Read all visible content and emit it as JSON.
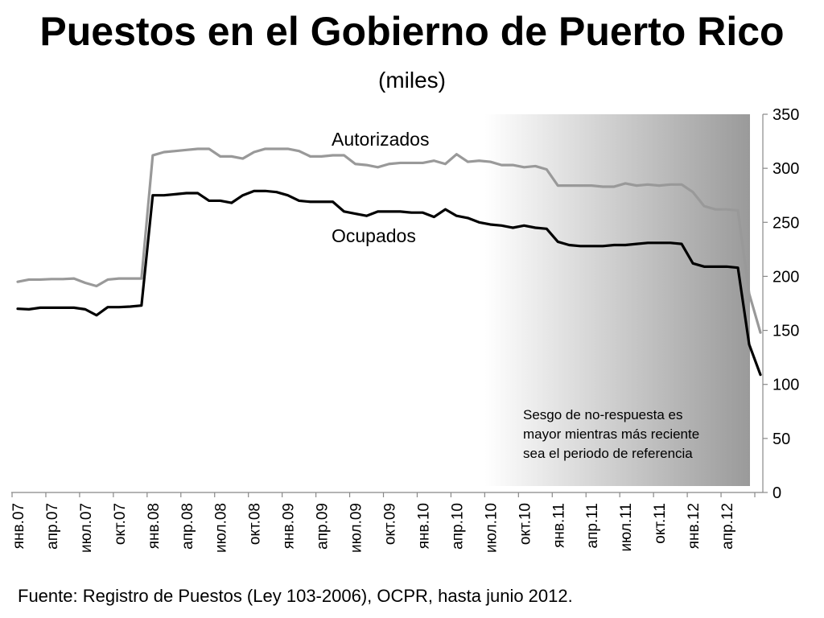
{
  "title": "Puestos en el Gobierno de Puerto Rico",
  "subtitle": "(miles)",
  "footer": "Fuente: Registro de Puestos (Ley 103-2006), OCPR, hasta junio 2012.",
  "note_lines": [
    "Sesgo de no-respuesta es",
    "mayor mientras más reciente",
    "sea el periodo de referencia"
  ],
  "colors": {
    "autorizados": "#999999",
    "ocupados": "#000000",
    "shade_dark": "#9a9a9a"
  },
  "chart_data": {
    "type": "line",
    "ylim": [
      0,
      350
    ],
    "yticks": [
      0,
      50,
      100,
      150,
      200,
      250,
      300,
      350
    ],
    "y_axis_position": "right",
    "grid": false,
    "x_tick_labels": [
      "янв.07",
      "апр.07",
      "июл.07",
      "окт.07",
      "янв.08",
      "апр.08",
      "июл.08",
      "окт.08",
      "янв.09",
      "апр.09",
      "июл.09",
      "окт.09",
      "янв.10",
      "апр.10",
      "июл.10",
      "окт.10",
      "янв.11",
      "апр.11",
      "июл.11",
      "окт.11",
      "янв.12",
      "апр.12"
    ],
    "x_start": "2007-01",
    "x_end": "2012-06",
    "shaded_region": {
      "from": "2010-07",
      "to": "2012-06",
      "style": "gradient white to gray"
    },
    "series": [
      {
        "name": "Autorizados",
        "color": "#999999",
        "values": [
          195,
          197,
          197,
          197.5,
          197.5,
          198,
          194,
          191,
          197,
          198,
          198,
          198,
          312,
          315,
          316,
          317,
          318,
          318,
          311,
          311,
          309,
          315,
          318,
          318,
          318,
          316,
          311,
          311,
          312,
          312,
          304,
          303,
          301,
          304,
          305,
          305,
          305,
          307,
          304,
          313,
          306,
          307,
          306,
          303,
          303,
          301,
          302,
          299,
          284,
          284,
          284,
          284,
          283,
          283,
          286,
          284,
          285,
          284,
          285,
          285,
          278,
          265,
          262,
          262,
          261,
          184,
          148
        ]
      },
      {
        "name": "Ocupados",
        "color": "#000000",
        "values": [
          170,
          169.5,
          171,
          171,
          171,
          171,
          169.5,
          164,
          171.5,
          171.5,
          172,
          173,
          275,
          275,
          276,
          277,
          277,
          270,
          270,
          268,
          275,
          279,
          279,
          278,
          275,
          270,
          269,
          269,
          269,
          260,
          258,
          256,
          260,
          260,
          260,
          259,
          259,
          255,
          262,
          256,
          254,
          250,
          248,
          247,
          245,
          247,
          245,
          244,
          232,
          229,
          228,
          228,
          228,
          229,
          229,
          230,
          231,
          231,
          231,
          230,
          212,
          209,
          209,
          209,
          208,
          137,
          109
        ]
      }
    ]
  }
}
